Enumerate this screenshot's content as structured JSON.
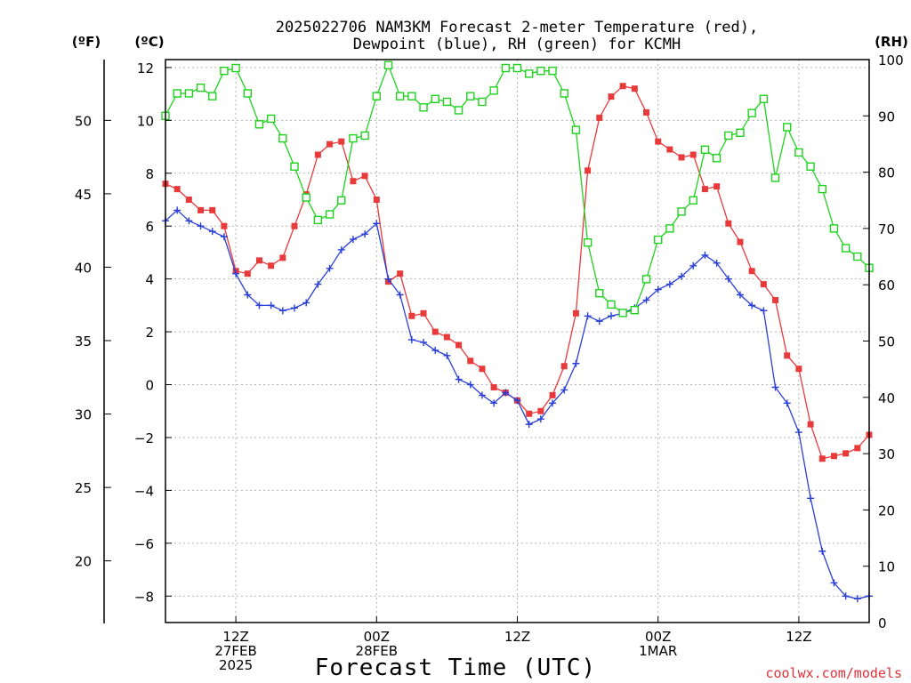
{
  "chart_data": {
    "type": "line",
    "title_line1": "2025022706 NAM3KM Forecast 2-meter Temperature (red),",
    "title_line2": "Dewpoint (blue), RH (green) for KCMH",
    "xlabel": "Forecast Time (UTC)",
    "credit": "coolwx.com/models",
    "unit_f": "(ºF)",
    "unit_c": "(ºC)",
    "unit_rh": "(RH)",
    "x_start_hour": 7,
    "x_hours": [
      7,
      8,
      9,
      10,
      11,
      12,
      13,
      14,
      15,
      16,
      17,
      18,
      19,
      20,
      21,
      22,
      23,
      24,
      25,
      26,
      27,
      28,
      29,
      30,
      31,
      32,
      33,
      34,
      35,
      36,
      37,
      38,
      39,
      40,
      41,
      42,
      43,
      44,
      45,
      46,
      47,
      48,
      49,
      50,
      51,
      52,
      53,
      54,
      55,
      56,
      57,
      58,
      59,
      60,
      61,
      62,
      63,
      64,
      65,
      66,
      67
    ],
    "xlim": [
      7,
      67
    ],
    "x_ticks": [
      {
        "hour": 13,
        "lines": [
          "12Z",
          "27FEB",
          "2025"
        ]
      },
      {
        "hour": 25,
        "lines": [
          "00Z",
          "28FEB"
        ]
      },
      {
        "hour": 37,
        "lines": [
          "12Z"
        ]
      },
      {
        "hour": 49,
        "lines": [
          "00Z",
          "1MAR"
        ]
      },
      {
        "hour": 61,
        "lines": [
          "12Z"
        ]
      }
    ],
    "ylim_c": [
      -9,
      12.3
    ],
    "y_ticks_c": [
      "12",
      "10",
      "8",
      "6",
      "4",
      "2",
      "0",
      "−2",
      "−4",
      "−6",
      "−8"
    ],
    "y_ticks_f": [
      "50",
      "45",
      "40",
      "35",
      "30",
      "25",
      "20"
    ],
    "ylim_rh": [
      0,
      100
    ],
    "y_ticks_rh": [
      "100",
      "90",
      "80",
      "70",
      "60",
      "50",
      "40",
      "30",
      "20",
      "10",
      "0"
    ],
    "grid": true,
    "series": [
      {
        "name": "Temperature",
        "axis": "c",
        "color": "#e83a3a",
        "marker": "filled-square",
        "values": [
          7.6,
          7.4,
          7.0,
          6.6,
          6.6,
          6.0,
          4.3,
          4.2,
          4.7,
          4.5,
          4.8,
          6.0,
          7.2,
          8.7,
          9.1,
          9.2,
          7.7,
          7.9,
          7.0,
          3.9,
          4.2,
          2.6,
          2.7,
          2.0,
          1.8,
          1.5,
          0.9,
          0.6,
          -0.1,
          -0.3,
          -0.6,
          -1.1,
          -1.0,
          -0.4,
          0.7,
          2.7,
          8.1,
          10.1,
          10.9,
          11.3,
          11.2,
          10.3,
          9.2,
          8.9,
          8.6,
          8.7,
          7.4,
          7.5,
          6.1,
          5.4,
          4.3,
          3.8,
          3.2,
          1.1,
          0.6,
          -1.5,
          -2.8,
          -2.7,
          -2.6,
          -2.4,
          -1.9
        ]
      },
      {
        "name": "Dewpoint",
        "axis": "c",
        "color": "#2a3fd6",
        "marker": "plus",
        "values": [
          6.2,
          6.6,
          6.2,
          6.0,
          5.8,
          5.6,
          4.2,
          3.4,
          3.0,
          3.0,
          2.8,
          2.9,
          3.1,
          3.8,
          4.4,
          5.1,
          5.5,
          5.7,
          6.1,
          4.0,
          3.4,
          1.7,
          1.6,
          1.3,
          1.1,
          0.2,
          0.0,
          -0.4,
          -0.7,
          -0.3,
          -0.6,
          -1.5,
          -1.3,
          -0.7,
          -0.2,
          0.8,
          2.6,
          2.4,
          2.6,
          2.7,
          2.9,
          3.2,
          3.6,
          3.8,
          4.1,
          4.5,
          4.9,
          4.6,
          4.0,
          3.4,
          3.0,
          2.8,
          -0.1,
          -0.7,
          -1.8,
          -4.3,
          -6.3,
          -7.5,
          -8.0,
          -8.1,
          -8.0
        ]
      },
      {
        "name": "RH",
        "axis": "rh",
        "color": "#1ed21e",
        "marker": "open-square",
        "values": [
          90,
          94,
          94,
          95,
          93.5,
          98,
          98.5,
          94,
          88.5,
          89.5,
          86,
          81,
          75.5,
          71.5,
          72.5,
          75,
          86,
          86.5,
          93.5,
          99,
          93.5,
          93.5,
          91.5,
          93,
          92.5,
          91,
          93.5,
          92.5,
          94.5,
          98.5,
          98.5,
          97.5,
          98,
          98,
          94,
          87.5,
          67.5,
          58.5,
          56.5,
          55,
          55.5,
          61,
          68,
          70,
          73,
          75,
          84,
          82.5,
          86.5,
          87,
          90.5,
          93,
          79,
          88,
          83.5,
          81,
          77,
          70,
          66.5,
          65,
          63
        ]
      }
    ]
  }
}
